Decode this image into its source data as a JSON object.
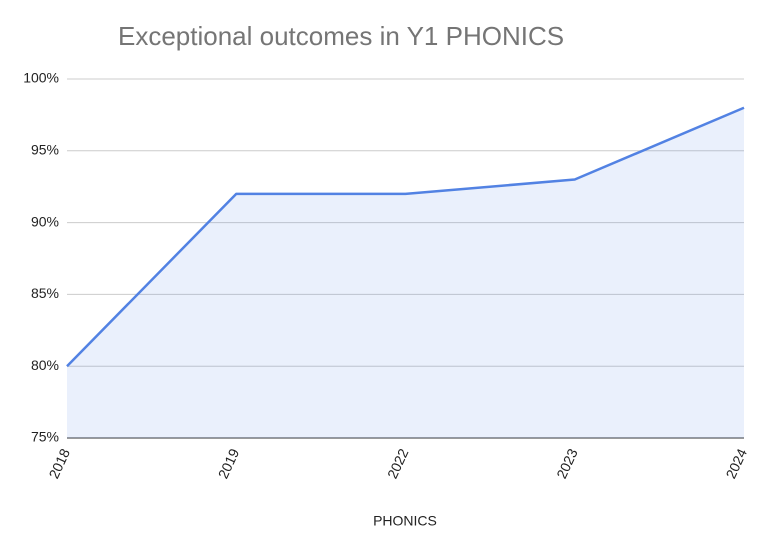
{
  "chart_data": {
    "type": "area",
    "title": "Exceptional outcomes in Y1 PHONICS",
    "x_label": "PHONICS",
    "categories": [
      "2018",
      "2019",
      "2022",
      "2023",
      "2024"
    ],
    "series": [
      {
        "name": "PHONICS",
        "color": "#5282e3",
        "values": [
          80,
          92,
          92,
          93,
          98
        ]
      }
    ],
    "ylim": [
      75,
      100
    ],
    "yticks": [
      {
        "value": 75,
        "label": "75%"
      },
      {
        "value": 80,
        "label": "80%"
      },
      {
        "value": 85,
        "label": "85%"
      },
      {
        "value": 90,
        "label": "90%"
      },
      {
        "value": 95,
        "label": "95%"
      },
      {
        "value": 100,
        "label": "100%"
      }
    ],
    "grid": true
  }
}
